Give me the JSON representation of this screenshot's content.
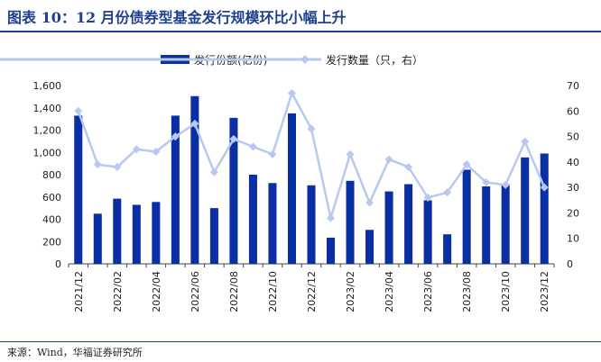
{
  "header": {
    "title": "图表 10：12 月份债券型基金发行规模环比小幅上升"
  },
  "footer": {
    "source": "来源：Wind，华福证券研究所"
  },
  "colors": {
    "bar": "#0a2ea3",
    "line": "#b7c9f0",
    "axis": "#444444",
    "title": "#1f3f8f"
  },
  "chart_data": {
    "type": "bar",
    "x": [
      "2021/12",
      "2022/01",
      "2022/02",
      "2022/03",
      "2022/04",
      "2022/05",
      "2022/06",
      "2022/07",
      "2022/08",
      "2022/09",
      "2022/10",
      "2022/11",
      "2022/12",
      "2023/01",
      "2023/02",
      "2023/03",
      "2023/04",
      "2023/05",
      "2023/06",
      "2023/07",
      "2023/08",
      "2023/09",
      "2023/10",
      "2023/11",
      "2023/12"
    ],
    "x_tick_labels": [
      "2021/12",
      "2022/02",
      "2022/04",
      "2022/06",
      "2022/08",
      "2022/10",
      "2022/12",
      "2023/02",
      "2023/04",
      "2023/06",
      "2023/08",
      "2023/10",
      "2023/12"
    ],
    "series": [
      {
        "name": "发行份额(亿份)",
        "type": "bar",
        "axis": "left",
        "values": [
          1330,
          450,
          585,
          530,
          555,
          1330,
          1505,
          500,
          1310,
          800,
          725,
          1350,
          705,
          235,
          745,
          305,
          650,
          715,
          570,
          265,
          845,
          695,
          715,
          955,
          990
        ]
      },
      {
        "name": "发行数量（只，右）",
        "type": "line",
        "axis": "right",
        "values": [
          60,
          39,
          38,
          45,
          44,
          50,
          55,
          36,
          49,
          46,
          43,
          67,
          53,
          18,
          43,
          24,
          41,
          38,
          26,
          28,
          39,
          32,
          31,
          48,
          30
        ]
      }
    ],
    "y_left": {
      "ylim": [
        0,
        1600
      ],
      "ticks": [
        "0",
        "200",
        "400",
        "600",
        "800",
        "1,000",
        "1,200",
        "1,400",
        "1,600"
      ]
    },
    "y_right": {
      "ylim": [
        0,
        70
      ],
      "ticks": [
        "0",
        "10",
        "20",
        "30",
        "40",
        "50",
        "60",
        "70"
      ]
    },
    "legend": "top-center",
    "grid": false
  }
}
